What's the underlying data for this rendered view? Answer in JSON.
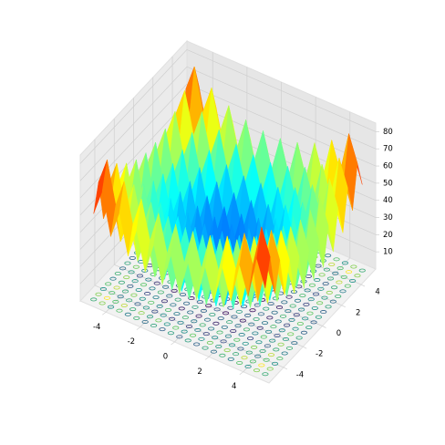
{
  "chart_data": {
    "type": "surface3d",
    "x": [
      -5,
      -4.5,
      -4,
      -3.5,
      -3,
      -2.5,
      -2,
      -1.5,
      -1,
      -0.5,
      0,
      0.5,
      1,
      1.5,
      2,
      2.5,
      3,
      3.5,
      4,
      4.5,
      5
    ],
    "y": [
      -5,
      -4.5,
      -4,
      -3.5,
      -3,
      -2.5,
      -2,
      -1.5,
      -1,
      -0.5,
      0,
      0.5,
      1,
      1.5,
      2,
      2.5,
      3,
      3.5,
      4,
      4.5,
      5
    ],
    "z": [
      [
        50,
        65.25,
        41,
        57.25,
        34,
        51.25,
        29,
        47.25,
        26,
        45.25,
        25,
        45.25,
        26,
        47.25,
        29,
        51.25,
        34,
        57.25,
        41,
        65.25,
        50
      ],
      [
        65.25,
        80.5,
        56.25,
        72.5,
        49.25,
        66.5,
        44.25,
        62.5,
        41.25,
        60.5,
        40.25,
        60.5,
        41.25,
        62.5,
        44.25,
        66.5,
        49.25,
        72.5,
        56.25,
        80.5,
        65.25
      ],
      [
        41,
        56.25,
        32,
        48.25,
        25,
        42.25,
        20,
        38.25,
        17,
        36.25,
        16,
        36.25,
        17,
        38.25,
        20,
        42.25,
        25,
        48.25,
        32,
        56.25,
        41
      ],
      [
        57.25,
        72.5,
        48.25,
        64.5,
        41.25,
        58.5,
        36.25,
        54.5,
        33.25,
        52.5,
        32.25,
        52.5,
        33.25,
        54.5,
        36.25,
        58.5,
        41.25,
        64.5,
        48.25,
        72.5,
        57.25
      ],
      [
        34,
        49.25,
        25,
        41.25,
        18,
        35.25,
        13,
        31.25,
        10,
        29.25,
        9,
        29.25,
        10,
        31.25,
        13,
        35.25,
        18,
        41.25,
        25,
        49.25,
        34
      ],
      [
        51.25,
        66.5,
        42.25,
        58.5,
        35.25,
        52.5,
        30.25,
        48.5,
        27.25,
        46.5,
        26.25,
        46.5,
        27.25,
        48.5,
        30.25,
        52.5,
        35.25,
        58.5,
        42.25,
        66.5,
        51.25
      ],
      [
        29,
        44.25,
        20,
        36.25,
        13,
        30.25,
        8,
        26.25,
        5,
        24.25,
        4,
        24.25,
        5,
        26.25,
        8,
        30.25,
        13,
        36.25,
        20,
        44.25,
        29
      ],
      [
        47.25,
        62.5,
        38.25,
        54.5,
        31.25,
        48.5,
        26.25,
        44.5,
        23.25,
        42.5,
        22.25,
        42.5,
        23.25,
        44.5,
        26.25,
        48.5,
        31.25,
        54.5,
        38.25,
        62.5,
        47.25
      ],
      [
        26,
        41.25,
        17,
        33.25,
        10,
        27.25,
        5,
        23.25,
        2,
        21.25,
        1,
        21.25,
        2,
        23.25,
        5,
        27.25,
        10,
        33.25,
        17,
        41.25,
        26
      ],
      [
        45.25,
        60.5,
        36.25,
        52.5,
        29.25,
        46.5,
        24.25,
        42.5,
        21.25,
        40.5,
        20.25,
        40.5,
        21.25,
        42.5,
        24.25,
        46.5,
        29.25,
        52.5,
        36.25,
        60.5,
        45.25
      ],
      [
        25,
        40.25,
        16,
        32.25,
        9,
        26.25,
        4,
        22.25,
        1,
        20.25,
        0,
        20.25,
        1,
        22.25,
        4,
        26.25,
        9,
        32.25,
        16,
        40.25,
        25
      ],
      [
        45.25,
        60.5,
        36.25,
        52.5,
        29.25,
        46.5,
        24.25,
        42.5,
        21.25,
        40.5,
        20.25,
        40.5,
        21.25,
        42.5,
        24.25,
        46.5,
        29.25,
        52.5,
        36.25,
        60.5,
        45.25
      ],
      [
        26,
        41.25,
        17,
        33.25,
        10,
        27.25,
        5,
        23.25,
        2,
        21.25,
        1,
        21.25,
        2,
        23.25,
        5,
        27.25,
        10,
        33.25,
        17,
        41.25,
        26
      ],
      [
        47.25,
        62.5,
        38.25,
        54.5,
        31.25,
        48.5,
        26.25,
        44.5,
        23.25,
        42.5,
        22.25,
        42.5,
        23.25,
        44.5,
        26.25,
        48.5,
        31.25,
        54.5,
        38.25,
        62.5,
        47.25
      ],
      [
        29,
        44.25,
        20,
        36.25,
        13,
        30.25,
        8,
        26.25,
        5,
        24.25,
        4,
        24.25,
        5,
        26.25,
        8,
        30.25,
        13,
        36.25,
        20,
        44.25,
        29
      ],
      [
        51.25,
        66.5,
        42.25,
        58.5,
        35.25,
        52.5,
        30.25,
        48.5,
        27.25,
        46.5,
        26.25,
        46.5,
        27.25,
        48.5,
        30.25,
        52.5,
        35.25,
        58.5,
        42.25,
        66.5,
        51.25
      ],
      [
        34,
        49.25,
        25,
        41.25,
        18,
        35.25,
        13,
        31.25,
        10,
        29.25,
        9,
        29.25,
        10,
        31.25,
        13,
        35.25,
        18,
        41.25,
        25,
        49.25,
        34
      ],
      [
        57.25,
        72.5,
        48.25,
        64.5,
        41.25,
        58.5,
        36.25,
        54.5,
        33.25,
        52.5,
        32.25,
        52.5,
        33.25,
        54.5,
        36.25,
        58.5,
        41.25,
        64.5,
        48.25,
        72.5,
        57.25
      ],
      [
        41,
        56.25,
        32,
        48.25,
        25,
        42.25,
        20,
        38.25,
        17,
        36.25,
        16,
        36.25,
        17,
        38.25,
        20,
        42.25,
        25,
        48.25,
        32,
        56.25,
        41
      ],
      [
        65.25,
        80.5,
        56.25,
        72.5,
        49.25,
        66.5,
        44.25,
        62.5,
        41.25,
        60.5,
        40.25,
        60.5,
        41.25,
        62.5,
        44.25,
        66.5,
        49.25,
        72.5,
        56.25,
        80.5,
        65.25
      ],
      [
        50,
        65.25,
        41,
        57.25,
        34,
        51.25,
        29,
        47.25,
        26,
        45.25,
        25,
        45.25,
        26,
        47.25,
        29,
        51.25,
        34,
        57.25,
        41,
        65.25,
        50
      ]
    ],
    "xlim": [
      -5.5,
      5.5
    ],
    "ylim": [
      -5.5,
      5.5
    ],
    "zlim": [
      0,
      85
    ],
    "xticks": [
      -4,
      -2,
      0,
      2,
      4
    ],
    "yticks": [
      -4,
      -2,
      0,
      2,
      4
    ],
    "zticks": [
      10,
      20,
      30,
      40,
      50,
      60,
      70,
      80
    ],
    "surface_colormap": "jet",
    "contour_colormap": "viridis",
    "grid": true
  }
}
